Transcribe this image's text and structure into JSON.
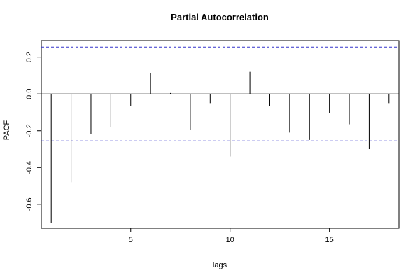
{
  "chart_data": {
    "type": "bar",
    "title": "Partial Autocorrelation",
    "xlabel": "lags",
    "ylabel": "PACF",
    "xlim": [
      0.5,
      18.5
    ],
    "ylim": [
      -0.73,
      0.29
    ],
    "x_ticks": [
      5,
      10,
      15
    ],
    "x_tick_labels": [
      "5",
      "10",
      "15"
    ],
    "y_ticks": [
      -0.6,
      -0.4,
      -0.2,
      0.0,
      0.2
    ],
    "y_tick_labels": [
      "-0.6",
      "-0.4",
      "-0.2",
      "0.0",
      "0.2"
    ],
    "lags": [
      1,
      2,
      3,
      4,
      5,
      6,
      7,
      8,
      9,
      10,
      11,
      12,
      13,
      14,
      15,
      16,
      17,
      18
    ],
    "values": [
      -0.7,
      -0.48,
      -0.22,
      -0.18,
      -0.065,
      0.115,
      0.005,
      -0.195,
      -0.05,
      -0.34,
      0.12,
      -0.065,
      -0.21,
      -0.25,
      -0.105,
      -0.165,
      -0.3,
      -0.05
    ],
    "confidence_bounds": [
      0.255,
      -0.255
    ],
    "grid": false,
    "colors": {
      "bars": "#000000",
      "zero_line": "#000000",
      "confidence_lines": "#3333cc",
      "frame": "#000000"
    }
  }
}
